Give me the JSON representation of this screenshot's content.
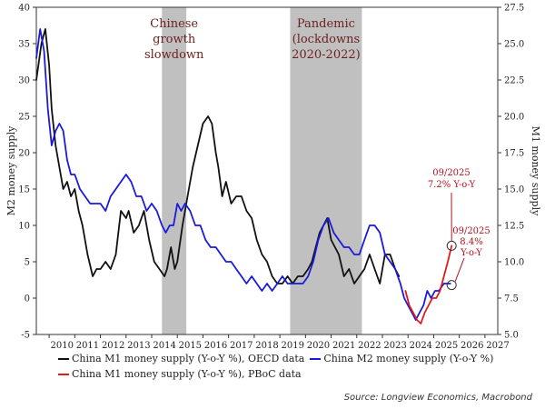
{
  "chart_data": {
    "type": "line",
    "y_left": {
      "label": "M2 money supply",
      "range": [
        -5,
        40
      ],
      "ticks": [
        -5,
        0,
        5,
        10,
        15,
        20,
        25,
        30,
        35,
        40
      ]
    },
    "y_right": {
      "label": "M1 money supply",
      "range": [
        5.0,
        27.5
      ],
      "ticks": [
        "5.0",
        "7.5",
        "10.0",
        "12.5",
        "15.0",
        "17.5",
        "20.0",
        "22.5",
        "25.0",
        "27.5"
      ]
    },
    "x_axis": {
      "range": [
        2009.5,
        2027.5
      ],
      "ticks": [
        "2010",
        "2011",
        "2012",
        "2013",
        "2014",
        "2015",
        "2016",
        "2017",
        "2018",
        "2019",
        "2020",
        "2021",
        "2022",
        "2023",
        "2024",
        "2025",
        "2026",
        "2027"
      ]
    },
    "shaded_regions": [
      {
        "label": [
          "Chinese",
          "growth",
          "slowdown"
        ],
        "start": 2014.4,
        "end": 2015.35
      },
      {
        "label": [
          "Pandemic",
          "(lockdowns",
          "2020-2022)"
        ],
        "start": 2019.4,
        "end": 2022.2
      }
    ],
    "annotations": [
      {
        "lines": [
          "09/2025",
          "7.2% Y-o-Y"
        ],
        "x": 2025.7,
        "y": 7.2,
        "axis": "left"
      },
      {
        "lines": [
          "09/2025",
          "8.4%",
          "Y-o-Y"
        ],
        "x": 2025.7,
        "y": 8.4,
        "axis": "right"
      }
    ],
    "series": [
      {
        "name": "China M1 money supply (Y-o-Y %), OECD data",
        "color": "#111111",
        "axis": "left",
        "x": [
          2009.5,
          2009.7,
          2009.85,
          2010.0,
          2010.1,
          2010.25,
          2010.4,
          2010.55,
          2010.7,
          2010.85,
          2011.0,
          2011.15,
          2011.3,
          2011.5,
          2011.7,
          2011.85,
          2012.0,
          2012.2,
          2012.4,
          2012.6,
          2012.8,
          2013.0,
          2013.1,
          2013.3,
          2013.5,
          2013.7,
          2013.9,
          2014.1,
          2014.3,
          2014.5,
          2014.6,
          2014.75,
          2014.9,
          2015.0,
          2015.2,
          2015.4,
          2015.6,
          2015.8,
          2016.0,
          2016.2,
          2016.35,
          2016.5,
          2016.6,
          2016.75,
          2016.9,
          2017.1,
          2017.3,
          2017.5,
          2017.7,
          2017.9,
          2018.1,
          2018.3,
          2018.5,
          2018.7,
          2018.9,
          2019.1,
          2019.3,
          2019.5,
          2019.7,
          2019.9,
          2020.1,
          2020.25,
          2020.4,
          2020.55,
          2020.7,
          2020.85,
          2021.0,
          2021.15,
          2021.3,
          2021.5,
          2021.7,
          2021.9,
          2022.1,
          2022.3,
          2022.5,
          2022.7,
          2022.9,
          2023.1,
          2023.3,
          2023.5,
          2023.65
        ],
        "y": [
          30,
          35,
          37,
          32,
          26,
          21,
          18,
          15,
          16,
          14,
          15,
          12,
          10,
          6,
          3,
          4,
          4,
          5,
          4,
          6,
          12,
          11,
          12,
          9,
          10,
          12,
          8,
          5,
          4,
          3,
          4,
          7,
          4,
          5,
          10,
          14,
          18,
          21,
          24,
          25,
          24,
          20,
          18,
          14,
          16,
          13,
          14,
          14,
          12,
          11,
          8,
          6,
          5,
          3,
          2,
          2,
          3,
          2,
          3,
          3,
          4,
          5,
          7,
          9,
          10,
          11,
          8,
          7,
          6,
          3,
          4,
          2,
          3,
          4,
          6,
          4,
          2,
          6,
          6,
          4,
          3
        ]
      },
      {
        "name": "China M2 money supply (Y-o-Y %)",
        "color": "#1a1adb",
        "axis": "left",
        "x": [
          2009.5,
          2009.65,
          2009.8,
          2009.95,
          2010.1,
          2010.25,
          2010.4,
          2010.55,
          2010.7,
          2010.85,
          2011.0,
          2011.2,
          2011.4,
          2011.6,
          2011.8,
          2012.0,
          2012.2,
          2012.4,
          2012.6,
          2012.8,
          2013.0,
          2013.2,
          2013.4,
          2013.6,
          2013.8,
          2014.0,
          2014.2,
          2014.4,
          2014.55,
          2014.7,
          2014.85,
          2015.0,
          2015.15,
          2015.3,
          2015.5,
          2015.7,
          2015.9,
          2016.1,
          2016.3,
          2016.5,
          2016.7,
          2016.9,
          2017.1,
          2017.3,
          2017.5,
          2017.7,
          2017.9,
          2018.1,
          2018.3,
          2018.5,
          2018.7,
          2018.9,
          2019.1,
          2019.3,
          2019.5,
          2019.7,
          2019.9,
          2020.1,
          2020.3,
          2020.5,
          2020.7,
          2020.9,
          2021.1,
          2021.3,
          2021.5,
          2021.7,
          2021.9,
          2022.1,
          2022.3,
          2022.5,
          2022.7,
          2022.9,
          2023.1,
          2023.3,
          2023.5,
          2023.7,
          2023.85,
          2024.0,
          2024.15,
          2024.3,
          2024.45,
          2024.6,
          2024.75,
          2024.9,
          2025.05,
          2025.2,
          2025.4,
          2025.55,
          2025.65
        ],
        "y": [
          33,
          37,
          34,
          26,
          21,
          23,
          24,
          23,
          19,
          17,
          17,
          15,
          14,
          13,
          13,
          13,
          12,
          14,
          15,
          16,
          17,
          16,
          14,
          14,
          12,
          13,
          12,
          10,
          9,
          10,
          10,
          13,
          12,
          13,
          12,
          10,
          10,
          8,
          7,
          7,
          6,
          5,
          5,
          4,
          3,
          2,
          3,
          2,
          1,
          2,
          1,
          2,
          3,
          2,
          2,
          2,
          2,
          3,
          5,
          8,
          10,
          11,
          9,
          8,
          7,
          7,
          6,
          6,
          8,
          10,
          10,
          9,
          6,
          5,
          4,
          2,
          0,
          -1,
          -2,
          -3,
          -2,
          -1,
          1,
          0,
          1,
          1,
          2,
          2,
          2
        ]
      },
      {
        "name": "China M1 money supply (Y-o-Y %), PBoC data",
        "color": "#e01b1b",
        "axis": "left",
        "x": [
          2023.9,
          2024.05,
          2024.2,
          2024.35,
          2024.5,
          2024.65,
          2024.8,
          2024.95,
          2025.1,
          2025.25,
          2025.4,
          2025.55,
          2025.7
        ],
        "y": [
          1,
          -1,
          -2,
          -3,
          -3.5,
          -2,
          -1,
          0,
          0,
          1,
          3,
          5,
          7.2
        ]
      }
    ]
  },
  "legend": {
    "m1_oecd": "China M1 money supply (Y-o-Y %), OECD data",
    "m2": "China M2 money supply (Y-o-Y %)",
    "m1_pboc": "China M1 money supply (Y-o-Y %), PBoC data"
  },
  "source": "Source: Longview Economics, Macrobond",
  "colors": {
    "shade": "#c0c0c0",
    "annotation": "#b3121b"
  }
}
